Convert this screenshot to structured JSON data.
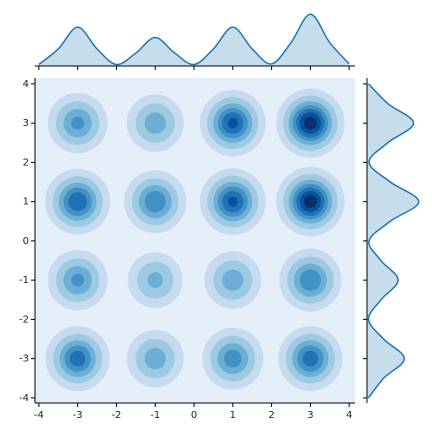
{
  "chart_data": {
    "type": "kde2d",
    "xlim": [
      -4.1,
      4.15
    ],
    "ylim": [
      -4.13,
      4.15
    ],
    "xticks": [
      -4,
      -3,
      -2,
      -1,
      0,
      1,
      2,
      3,
      4
    ],
    "yticks": [
      -4,
      -3,
      -2,
      -1,
      0,
      1,
      2,
      3,
      4
    ],
    "spread": 0.36,
    "levels": [
      0.05,
      0.15,
      0.3,
      0.45,
      0.6,
      0.75,
      0.9
    ],
    "colors": [
      "#e4eff9",
      "#c6dbef",
      "#9ecae1",
      "#6baed6",
      "#4292c6",
      "#2171b5",
      "#08519c",
      "#08306b"
    ],
    "blobs": {
      "x": [
        -3,
        -1,
        1,
        3,
        -3,
        -1,
        1,
        3,
        -3,
        -1,
        1,
        3,
        -3,
        -1,
        1,
        3
      ],
      "y": [
        3,
        3,
        3,
        3,
        1,
        1,
        1,
        1,
        -1,
        -1,
        -1,
        -1,
        -3,
        -3,
        -3,
        -3
      ],
      "values": [
        0.5,
        0.4,
        0.8,
        1.0,
        0.75,
        0.6,
        0.8,
        1.0,
        0.5,
        0.35,
        0.4,
        0.6,
        0.7,
        0.4,
        0.55,
        0.7
      ]
    },
    "marginal_color": "#1f77b4",
    "top_marginal": {
      "x": [
        -4,
        -3.5,
        -3,
        -2.5,
        -2,
        -1.5,
        -1,
        -0.5,
        0,
        0.5,
        1,
        1.5,
        2,
        2.5,
        3,
        3.5,
        4
      ],
      "values": [
        0.03,
        0.33,
        0.75,
        0.33,
        0.03,
        0.25,
        0.55,
        0.25,
        0.03,
        0.33,
        0.75,
        0.33,
        0.04,
        0.45,
        1.0,
        0.45,
        0.04
      ],
      "ylim": [
        0,
        1.12
      ]
    },
    "right_marginal": {
      "y": [
        -4,
        -3.5,
        -3,
        -2.5,
        -2,
        -1.5,
        -1,
        -0.5,
        0,
        0.5,
        1,
        1.5,
        2,
        2.5,
        3,
        3.5,
        4
      ],
      "values": [
        0.03,
        0.32,
        0.72,
        0.32,
        0.03,
        0.27,
        0.6,
        0.27,
        0.04,
        0.45,
        1.0,
        0.45,
        0.04,
        0.4,
        0.9,
        0.4,
        0.03
      ],
      "xlim": [
        0,
        1.12
      ]
    }
  }
}
